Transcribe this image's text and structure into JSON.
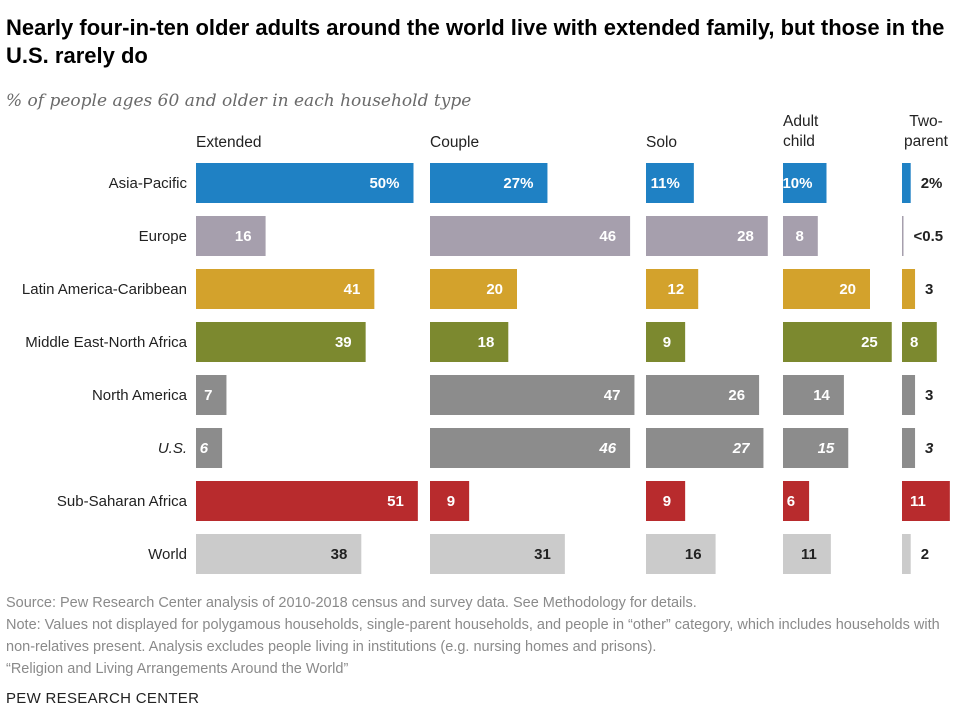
{
  "title": "Nearly four-in-ten older adults around the world live with extended family, but those in the U.S. rarely do",
  "subtitle": "% of people ages 60 and older in each household type",
  "footer": {
    "source": "Source: Pew Research Center analysis of 2010-2018 census and survey data. See Methodology for details.",
    "note": "Note: Values not displayed for polygamous households, single-parent households, and people in “other” category, which includes households with non-relatives present. Analysis excludes people living in institutions (e.g. nursing homes and prisons).",
    "report": "“Religion and Living Arrangements Around the World”",
    "org": "PEW RESEARCH CENTER"
  },
  "chart_data": {
    "type": "bar",
    "orientation": "horizontal",
    "layout": "small-multiples",
    "categories": [
      "Asia-Pacific",
      "Europe",
      "Latin America-Caribbean",
      "Middle East-North Africa",
      "North America",
      "U.S.",
      "Sub-Saharan Africa",
      "World"
    ],
    "italic_categories": [
      "U.S."
    ],
    "series": [
      {
        "name": "Extended",
        "values": [
          50,
          16,
          41,
          39,
          7,
          6,
          51,
          38
        ],
        "labels": [
          "50%",
          "16",
          "41",
          "39",
          "7",
          "6",
          "51",
          "38"
        ]
      },
      {
        "name": "Couple",
        "values": [
          27,
          46,
          20,
          18,
          47,
          46,
          9,
          31
        ],
        "labels": [
          "27%",
          "46",
          "20",
          "18",
          "47",
          "46",
          "9",
          "31"
        ]
      },
      {
        "name": "Solo",
        "values": [
          11,
          28,
          12,
          9,
          26,
          27,
          9,
          16
        ],
        "labels": [
          "11%",
          "28",
          "12",
          "9",
          "26",
          "27",
          "9",
          "16"
        ]
      },
      {
        "name": "Adult child",
        "values": [
          10,
          8,
          20,
          25,
          14,
          15,
          6,
          11
        ],
        "labels": [
          "10%",
          "8",
          "20",
          "25",
          "14",
          "15",
          "6",
          "11"
        ]
      },
      {
        "name": "Two-parent",
        "values": [
          2,
          0.3,
          3,
          8,
          3,
          3,
          11,
          2
        ],
        "labels": [
          "2%",
          "<0.5",
          "3",
          "8",
          "3",
          "3",
          "11",
          "2"
        ]
      }
    ],
    "region_colors": {
      "Asia-Pacific": "#1f81c4",
      "Europe": "#a69fad",
      "Latin America-Caribbean": "#d3a22c",
      "Middle East-North Africa": "#7c892f",
      "North America": "#8c8c8c",
      "U.S.": "#8c8c8c",
      "Sub-Saharan Africa": "#b82b2d",
      "World": "#cbcbcb"
    },
    "label_colors": {
      "inside": "#ffffff",
      "inside_world": "#222222",
      "outside": "#222222"
    }
  }
}
